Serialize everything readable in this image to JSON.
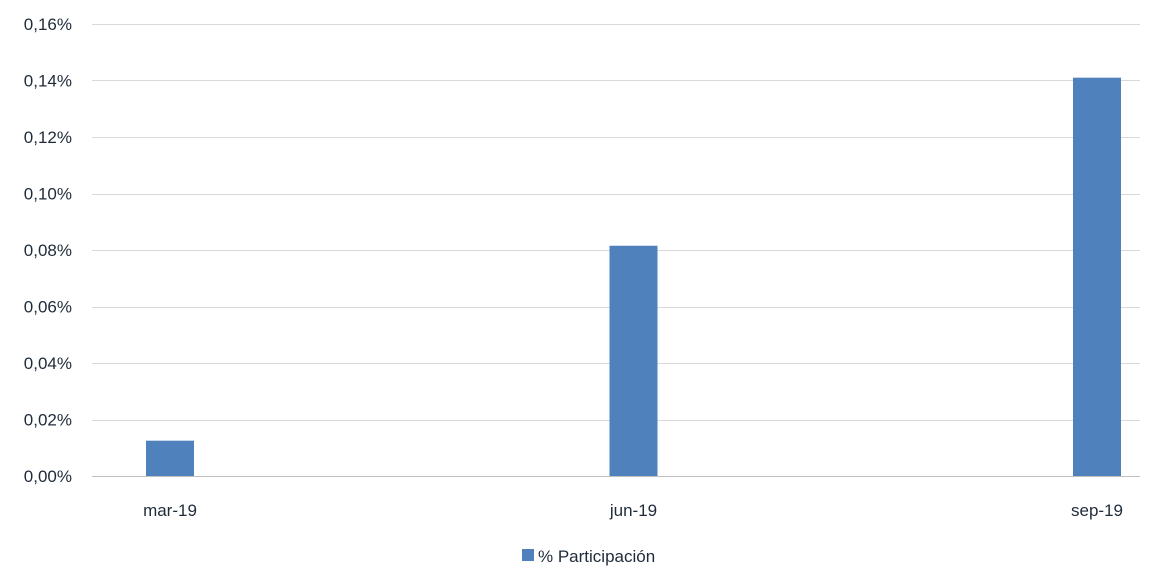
{
  "chart_data": {
    "type": "bar",
    "categories": [
      "mar-19",
      "jun-19",
      "sep-19"
    ],
    "series": [
      {
        "name": "% Participación",
        "values": [
          0.0125,
          0.0815,
          0.141
        ],
        "color": "#4f81bd"
      }
    ],
    "y_unit": "%",
    "ylim": [
      0,
      0.16
    ],
    "yticks": [
      0,
      0.02,
      0.04,
      0.06,
      0.08,
      0.1,
      0.12,
      0.14,
      0.16
    ],
    "ytick_labels": [
      "0,00%",
      "0,02%",
      "0,04%",
      "0,06%",
      "0,08%",
      "0,10%",
      "0,12%",
      "0,14%",
      "0,16%"
    ],
    "grid": true,
    "legend_position": "bottom-center",
    "title": "",
    "xlabel": "",
    "ylabel": ""
  }
}
